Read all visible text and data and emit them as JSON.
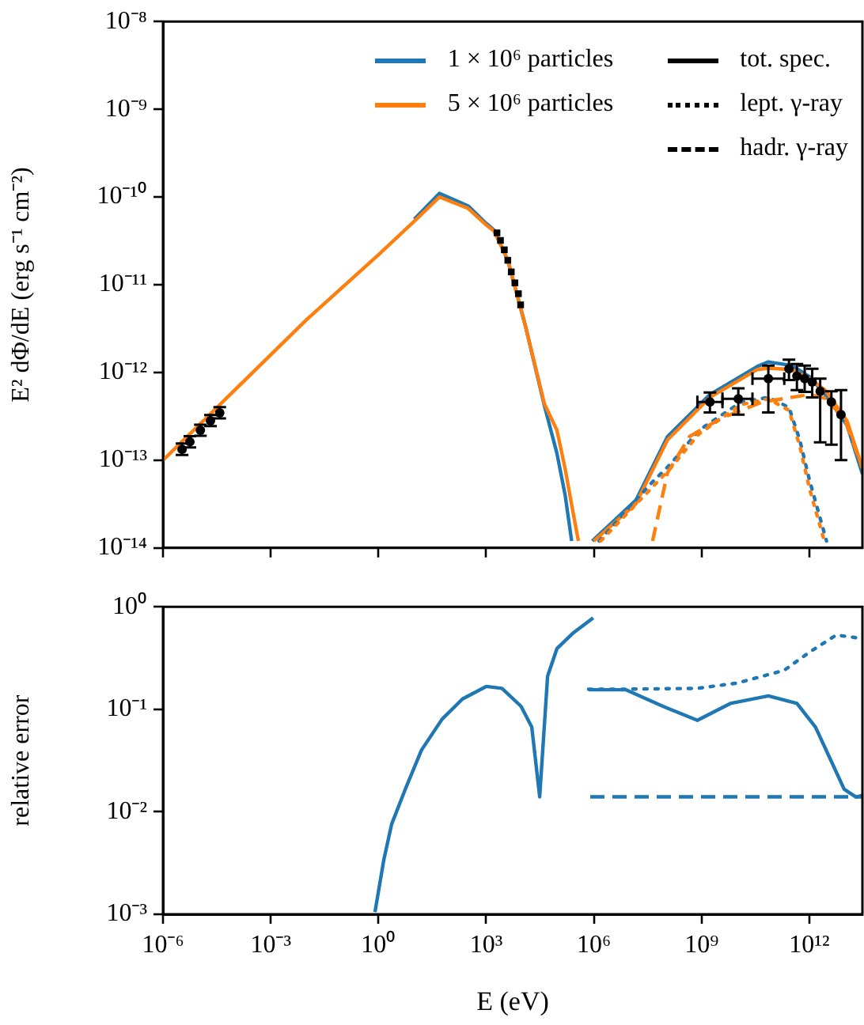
{
  "chart_data": [
    {
      "type": "line",
      "ylabel": "E² dΦ/dE (erg s⁻¹ cm⁻²)",
      "xlim": [
        1e-06,
        30000000000000.0
      ],
      "ylim": [
        1e-14,
        1e-08
      ],
      "log": "xy",
      "tick_labels": "y",
      "legend": "top right",
      "xticks": [
        1e-06,
        0.001,
        1,
        1000,
        1000000,
        1000000000,
        1000000000000
      ],
      "yticks": [
        {
          "value": 1e-14,
          "label": "10⁻¹⁴"
        },
        {
          "value": 1e-13,
          "label": "10⁻¹³"
        },
        {
          "value": 1e-12,
          "label": "10⁻¹²"
        },
        {
          "value": 1e-11,
          "label": "10⁻¹¹"
        },
        {
          "value": 1e-10,
          "label": "10⁻¹⁰"
        },
        {
          "value": 1e-09,
          "label": "10⁻⁹"
        },
        {
          "value": 1e-08,
          "label": "10⁻⁸"
        }
      ],
      "series": [
        {
          "name": "1 × 10⁶ particles",
          "color": "#1f77b4",
          "line_style": "solid",
          "x": [
            10,
            50,
            316,
            1000,
            1660,
            4000,
            12600,
            41700,
            93300,
            158000,
            240000
          ],
          "values": [
            5.6e-11,
            1.1e-10,
            7.9e-11,
            5e-11,
            4.2e-11,
            1.9e-11,
            3.3e-12,
            4.2e-13,
            1.2e-13,
            4e-14,
            1.2e-14
          ]
        },
        {
          "color": "#1f77b4",
          "line_style": "solid",
          "x": [
            900000,
            14800000.0,
            112000000.0,
            1700000000.0,
            35500000000.0,
            72000000000.0,
            320000000000.0,
            1000000000000.0,
            2750000000000.0,
            11200000000000.0,
            30000000000000.0
          ],
          "values": [
            1.2e-14,
            3.5e-14,
            1.86e-13,
            5.6e-13,
            1.17e-12,
            1.32e-12,
            1.2e-12,
            9e-13,
            5.6e-13,
            2.5e-13,
            7e-14
          ]
        },
        {
          "name": "5 × 10⁶ particles",
          "color": "#ff7f0e",
          "line_style": "solid",
          "x": [
            1e-06,
            0.0001,
            0.01,
            1,
            10,
            50,
            316,
            1000,
            1660,
            4000,
            12600,
            41700,
            93300,
            158000,
            251000,
            370000
          ],
          "values": [
            1e-13,
            6.3e-13,
            4e-12,
            2.2e-11,
            5.3e-11,
            1e-10,
            7.4e-11,
            4.8e-11,
            4.1e-11,
            1.9e-11,
            3.3e-12,
            4.4e-13,
            2.2e-13,
            8e-14,
            2.8e-14,
            1.2e-14
          ]
        },
        {
          "color": "#ff7f0e",
          "line_style": "solid",
          "x": [
            1000000,
            14800000.0,
            112000000.0,
            1700000000.0,
            35500000000.0,
            72000000000.0,
            320000000000.0,
            1000000000000.0,
            2750000000000.0,
            11200000000000.0,
            30000000000000.0
          ],
          "values": [
            1.2e-14,
            3.2e-14,
            1.7e-13,
            5.2e-13,
            1.08e-12,
            1.12e-12,
            1.08e-12,
            8.5e-13,
            6.3e-13,
            2.8e-13,
            8.1e-14
          ]
        },
        {
          "color": "#1f77b4",
          "line_style": "dotted",
          "x": [
            1400000.0,
            40000000.0,
            135000000.0,
            850000000.0,
            12600000000.0,
            72000000000.0,
            270000000000.0,
            540000000000.0,
            1000000000000.0,
            3000000000000.0
          ],
          "values": [
            1.2e-14,
            5.5e-14,
            9e-14,
            2.2e-13,
            4.6e-13,
            5.2e-13,
            4e-13,
            1.7e-13,
            6e-14,
            1.2e-14
          ]
        },
        {
          "color": "#ff7f0e",
          "line_style": "dotted",
          "x": [
            1550000.0,
            40000000.0,
            135000000.0,
            850000000.0,
            12600000000.0,
            72000000000.0,
            270000000000.0,
            540000000000.0,
            1000000000000.0,
            2600000000000.0
          ],
          "values": [
            1.2e-14,
            4.8e-14,
            8.1e-14,
            2e-13,
            4.3e-13,
            5e-13,
            3.7e-13,
            1.45e-13,
            4.8e-14,
            1.2e-14
          ]
        },
        {
          "color": "#ff7f0e",
          "line_style": "dashed",
          "x": [
            43000000.0,
            112000000.0,
            460000000.0,
            3500000000.0,
            48000000000.0,
            1000000000000.0,
            3200000000000.0,
            10000000000000.0,
            30000000000000.0
          ],
          "values": [
            1.2e-14,
            7.2e-14,
            1.86e-13,
            3e-13,
            4.6e-13,
            5.6e-13,
            5e-13,
            2.8e-13,
            8.1e-14
          ]
        },
        {
          "type": "scatter",
          "color": "#000000",
          "marker": "circle",
          "x": [
            3.4e-06,
            5.6e-06,
            1.1e-05,
            2.1e-05,
            3.8e-05
          ],
          "values": [
            1.33e-13,
            1.62e-13,
            2.19e-13,
            2.82e-13,
            3.47e-13
          ],
          "errors": [
            [
              1.15e-13,
              1.55e-13
            ],
            [
              1.4e-13,
              1.88e-13
            ],
            [
              1.9e-13,
              2.54e-13
            ],
            [
              2.45e-13,
              3.27e-13
            ],
            [
              3e-13,
              4.03e-13
            ]
          ]
        },
        {
          "type": "scatter",
          "color": "#000000",
          "marker": "square",
          "x": [
            2000,
            2500,
            3200,
            4000,
            5000,
            6300,
            7900,
            9100
          ],
          "values": [
            3.9e-11,
            3.2e-11,
            2.5e-11,
            1.9e-11,
            1.4e-11,
            1.05e-11,
            7.9e-12,
            5.9e-12
          ]
        },
        {
          "type": "scatter",
          "color": "#000000",
          "marker": "circle",
          "x": [
            1700000000.0,
            10500000000.0,
            72000000000.0,
            270000000000.0,
            450000000000.0,
            740000000000.0,
            1200000000000.0,
            2000000000000.0,
            4100000000000.0,
            7600000000000.0
          ],
          "values": [
            4.6e-13,
            5e-13,
            8.5e-13,
            1.1e-12,
            9.1e-13,
            8.5e-13,
            7.8e-13,
            6.1e-13,
            4.6e-13,
            3.3e-13
          ],
          "errors": [
            [
              3.5e-13,
              5.9e-13
            ],
            [
              3.3e-13,
              6.6e-13
            ],
            [
              3.5e-13,
              1.2e-12
            ],
            [
              8.2e-13,
              1.4e-12
            ],
            [
              6.3e-13,
              1.25e-12
            ],
            [
              6e-13,
              1.2e-12
            ],
            [
              5.2e-13,
              1.1e-12
            ],
            [
              1.6e-13,
              8.5e-13
            ],
            [
              1.5e-13,
              6.1e-13
            ],
            [
              1e-13,
              6.3e-13
            ]
          ],
          "xerrors": [
            [
              760000000.0,
              3800000000.0
            ],
            [
              3800000000.0,
              26000000000.0
            ],
            [
              26000000000.0,
              200000000000.0
            ],
            null,
            null,
            null,
            null,
            null,
            null,
            null
          ]
        },
        {
          "name": "tot. spec.",
          "color": "#000000",
          "line_style": "solid"
        },
        {
          "name": "lept. γ-ray",
          "color": "#000000",
          "line_style": "dotted"
        },
        {
          "name": "hadr. γ-ray",
          "color": "#000000",
          "line_style": "dashed"
        }
      ]
    },
    {
      "type": "line",
      "xlabel": "E (eV)",
      "ylabel": "relative error",
      "xlim": [
        1e-06,
        30000000000000.0
      ],
      "ylim": [
        0.001,
        1
      ],
      "log": "xy",
      "xticks": [
        {
          "value": 1e-06,
          "label": "10⁻⁶"
        },
        {
          "value": 0.001,
          "label": "10⁻³"
        },
        {
          "value": 1,
          "label": "10⁰"
        },
        {
          "value": 1000.0,
          "label": "10³"
        },
        {
          "value": 1000000.0,
          "label": "10⁶"
        },
        {
          "value": 1000000000.0,
          "label": "10⁹"
        },
        {
          "value": 1000000000000.0,
          "label": "10¹²"
        }
      ],
      "yticks": [
        {
          "value": 0.001,
          "label": "10⁻³"
        },
        {
          "value": 0.01,
          "label": "10⁻²"
        },
        {
          "value": 0.1,
          "label": "10⁻¹"
        },
        {
          "value": 1,
          "label": "10⁰"
        }
      ],
      "series": [
        {
          "color": "#1f77b4",
          "line_style": "solid",
          "x": [
            0.8,
            1.41,
            2.34,
            5.75,
            15.8,
            59,
            219,
            1000,
            2750,
            9330,
            18600,
            30900,
            51300,
            93300,
            257000,
            955000,
            null,
            710000,
            7900000.0,
            83000000.0,
            760000000.0,
            6300000000.0,
            72000000000.0,
            450000000000.0,
            1480000000000.0,
            4100000000000.0,
            9300000000000.0,
            20000000000000.0,
            30000000000000.0
          ],
          "values": [
            0.00105,
            0.0034,
            0.0076,
            0.017,
            0.04,
            0.08,
            0.126,
            0.167,
            0.16,
            0.107,
            0.067,
            0.014,
            0.21,
            0.39,
            0.55,
            0.78,
            null,
            0.155,
            0.155,
            0.107,
            0.078,
            0.114,
            0.135,
            0.114,
            0.067,
            0.031,
            0.0166,
            0.0139,
            0.0145
          ]
        },
        {
          "color": "#1f77b4",
          "line_style": "dotted",
          "x": [
            710000,
            7900000.0,
            760000000.0,
            9500000000.0,
            200000000000.0,
            1000000000000.0,
            5600000000000.0,
            30000000000000.0
          ],
          "values": [
            0.157,
            0.157,
            0.16,
            0.18,
            0.24,
            0.36,
            0.53,
            0.49
          ]
        },
        {
          "color": "#1f77b4",
          "line_style": "dashed",
          "x": [
            790000,
            30000000000000.0
          ],
          "values": [
            0.014,
            0.014
          ]
        }
      ]
    }
  ]
}
